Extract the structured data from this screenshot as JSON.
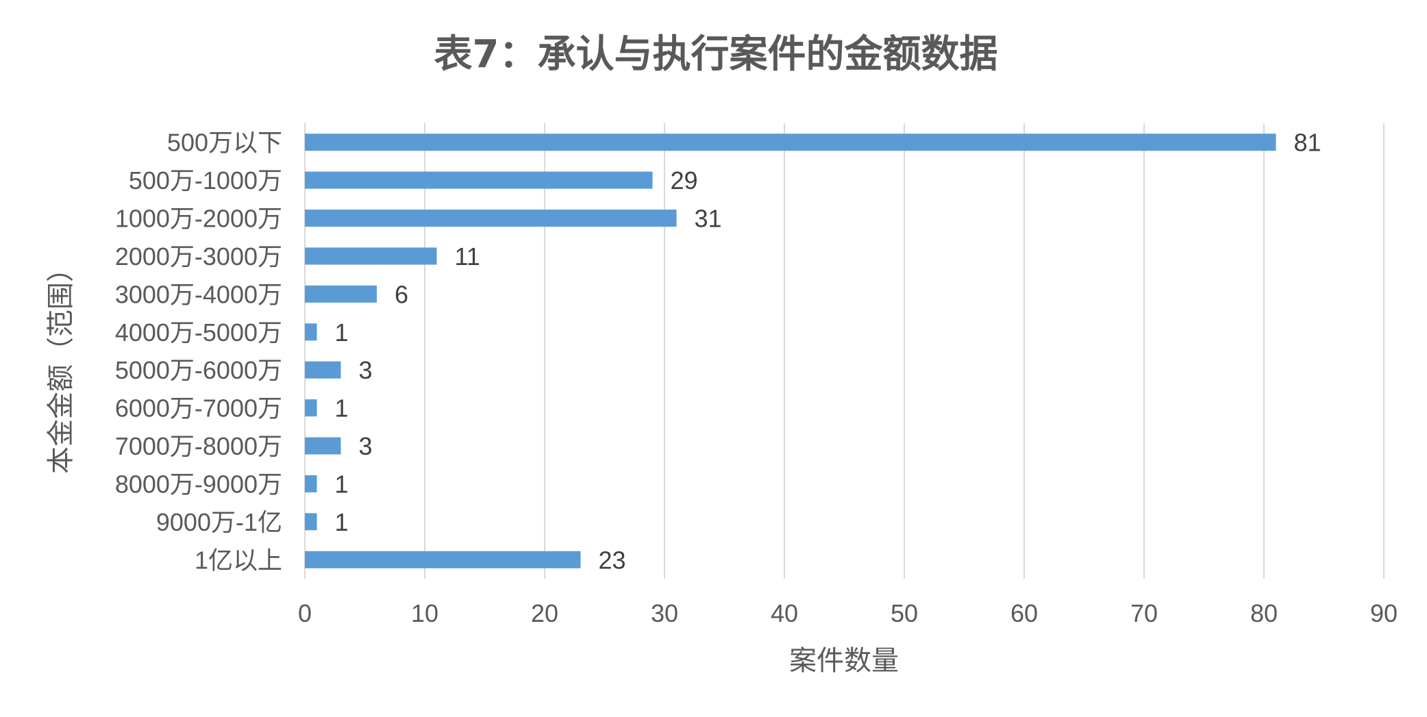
{
  "chart_data": {
    "type": "bar",
    "orientation": "horizontal",
    "title": "表7：承认与执行案件的金额数据",
    "xlabel": "案件数量",
    "ylabel": "本金金额（范围）",
    "categories": [
      "500万以下",
      "500万-1000万",
      "1000万-2000万",
      "2000万-3000万",
      "3000万-4000万",
      "4000万-5000万",
      "5000万-6000万",
      "6000万-7000万",
      "7000万-8000万",
      "8000万-9000万",
      "9000万-1亿",
      "1亿以上"
    ],
    "values": [
      81,
      29,
      31,
      11,
      6,
      1,
      3,
      1,
      3,
      1,
      1,
      23
    ],
    "xlim": [
      0,
      90
    ],
    "xticks": [
      0,
      10,
      20,
      30,
      40,
      50,
      60,
      70,
      80,
      90
    ],
    "grid": "vertical",
    "legend": "none",
    "bar_color": "#5B9BD5",
    "data_labels": true
  }
}
